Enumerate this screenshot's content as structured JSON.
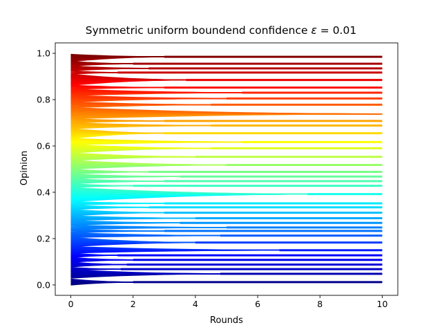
{
  "chart_data": {
    "type": "line",
    "title": "Symmetric uniform boundend confidence ε = 0.01",
    "title_parts": {
      "text": "Symmetric uniform boundend confidence ",
      "symbol": "ε",
      "eq": " = 0.01"
    },
    "xlabel": "Rounds",
    "ylabel": "Opinion",
    "xlim": [
      -0.5,
      10.5
    ],
    "ylim": [
      -0.045,
      1.045
    ],
    "xticks": [
      0,
      2,
      4,
      6,
      8,
      10
    ],
    "xtick_labels": [
      "0",
      "2",
      "4",
      "6",
      "8",
      "10"
    ],
    "yticks": [
      0.0,
      0.2,
      0.4,
      0.6,
      0.8,
      1.0
    ],
    "ytick_labels": [
      "0.0",
      "0.2",
      "0.4",
      "0.6",
      "0.8",
      "1.0"
    ],
    "colormap": "jet",
    "grid": false,
    "initial_opinions_start": 0.0,
    "initial_opinions_end": 0.99,
    "clusters": [
      {
        "y": 0.012,
        "lo": 0.0,
        "hi": 0.025,
        "t": 2.0
      },
      {
        "y": 0.048,
        "lo": 0.03,
        "hi": 0.065,
        "t": 4.8
      },
      {
        "y": 0.068,
        "lo": 0.062,
        "hi": 0.075,
        "t": 1.6
      },
      {
        "y": 0.088,
        "lo": 0.078,
        "hi": 0.098,
        "t": 1.8
      },
      {
        "y": 0.108,
        "lo": 0.098,
        "hi": 0.118,
        "t": 2.0
      },
      {
        "y": 0.128,
        "lo": 0.118,
        "hi": 0.138,
        "t": 1.5
      },
      {
        "y": 0.15,
        "lo": 0.138,
        "hi": 0.165,
        "t": 6.7
      },
      {
        "y": 0.183,
        "lo": 0.165,
        "hi": 0.205,
        "t": 4.0
      },
      {
        "y": 0.213,
        "lo": 0.205,
        "hi": 0.225,
        "t": 4.8
      },
      {
        "y": 0.233,
        "lo": 0.225,
        "hi": 0.24,
        "t": 3.0
      },
      {
        "y": 0.248,
        "lo": 0.24,
        "hi": 0.258,
        "t": 5.0
      },
      {
        "y": 0.268,
        "lo": 0.258,
        "hi": 0.278,
        "t": 3.5
      },
      {
        "y": 0.288,
        "lo": 0.278,
        "hi": 0.298,
        "t": 4.0
      },
      {
        "y": 0.312,
        "lo": 0.298,
        "hi": 0.325,
        "t": 3.0
      },
      {
        "y": 0.335,
        "lo": 0.325,
        "hi": 0.345,
        "t": 2.5
      },
      {
        "y": 0.352,
        "lo": 0.345,
        "hi": 0.36,
        "t": 3.0
      },
      {
        "y": 0.392,
        "lo": 0.36,
        "hi": 0.42,
        "t": 7.6
      },
      {
        "y": 0.428,
        "lo": 0.42,
        "hi": 0.437,
        "t": 2.0
      },
      {
        "y": 0.448,
        "lo": 0.437,
        "hi": 0.458,
        "t": 3.0
      },
      {
        "y": 0.468,
        "lo": 0.458,
        "hi": 0.478,
        "t": 3.5
      },
      {
        "y": 0.488,
        "lo": 0.478,
        "hi": 0.5,
        "t": 2.5
      },
      {
        "y": 0.518,
        "lo": 0.5,
        "hi": 0.537,
        "t": 5.0
      },
      {
        "y": 0.553,
        "lo": 0.537,
        "hi": 0.57,
        "t": 4.0
      },
      {
        "y": 0.59,
        "lo": 0.57,
        "hi": 0.605,
        "t": 4.5
      },
      {
        "y": 0.617,
        "lo": 0.605,
        "hi": 0.632,
        "t": 5.5
      },
      {
        "y": 0.655,
        "lo": 0.632,
        "hi": 0.675,
        "t": 3.0
      },
      {
        "y": 0.688,
        "lo": 0.675,
        "hi": 0.7,
        "t": 4.5
      },
      {
        "y": 0.708,
        "lo": 0.7,
        "hi": 0.718,
        "t": 3.0
      },
      {
        "y": 0.738,
        "lo": 0.718,
        "hi": 0.765,
        "t": 10.0
      },
      {
        "y": 0.778,
        "lo": 0.765,
        "hi": 0.79,
        "t": 4.5
      },
      {
        "y": 0.805,
        "lo": 0.79,
        "hi": 0.818,
        "t": 5.0
      },
      {
        "y": 0.83,
        "lo": 0.818,
        "hi": 0.845,
        "t": 5.5
      },
      {
        "y": 0.852,
        "lo": 0.845,
        "hi": 0.862,
        "t": 3.0
      },
      {
        "y": 0.885,
        "lo": 0.862,
        "hi": 0.91,
        "t": 3.7
      },
      {
        "y": 0.917,
        "lo": 0.91,
        "hi": 0.925,
        "t": 1.5
      },
      {
        "y": 0.935,
        "lo": 0.925,
        "hi": 0.945,
        "t": 2.5
      },
      {
        "y": 0.955,
        "lo": 0.945,
        "hi": 0.965,
        "t": 2.0
      },
      {
        "y": 0.985,
        "lo": 0.965,
        "hi": 0.995,
        "t": 3.0
      }
    ]
  }
}
